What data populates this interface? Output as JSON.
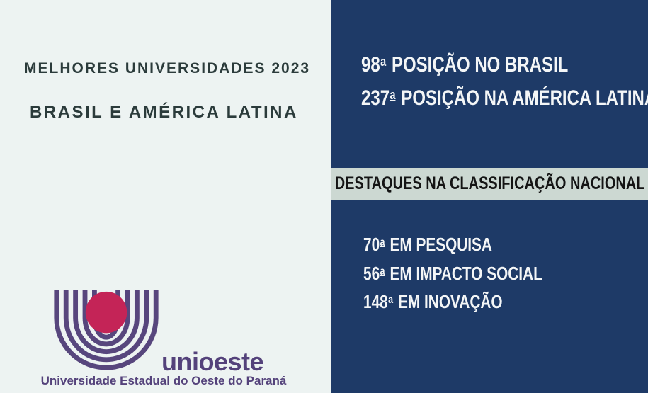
{
  "left_panel": {
    "title_line1": "MELHORES UNIVERSIDADES 2023",
    "title_line2": "BRASIL E AMÉRICA LATINA",
    "logo": {
      "wordmark": "unioeste",
      "subtitle": "Universidade Estadual do Oeste do Paraná",
      "colors": {
        "purple": "#54427b",
        "circle_red": "#c42457"
      }
    },
    "colors": {
      "background": "#edf3f2",
      "title_text": "#2b3b3b"
    }
  },
  "right_panel": {
    "rankings": [
      "98ª POSIÇÃO NO BRASIL",
      "237ª POSIÇÃO NA AMÉRICA LATINA"
    ],
    "banner_label": "DESTAQUES NA CLASSIFICAÇÃO NACIONAL",
    "highlights": [
      "70ª EM PESQUISA",
      "56ª EM IMPACTO SOCIAL",
      "148ª EM INOVAÇÃO"
    ],
    "colors": {
      "background": "#1e3a67",
      "banner_background": "#ccd8d2",
      "banner_text": "#141414",
      "text": "#f4f6f7"
    }
  }
}
